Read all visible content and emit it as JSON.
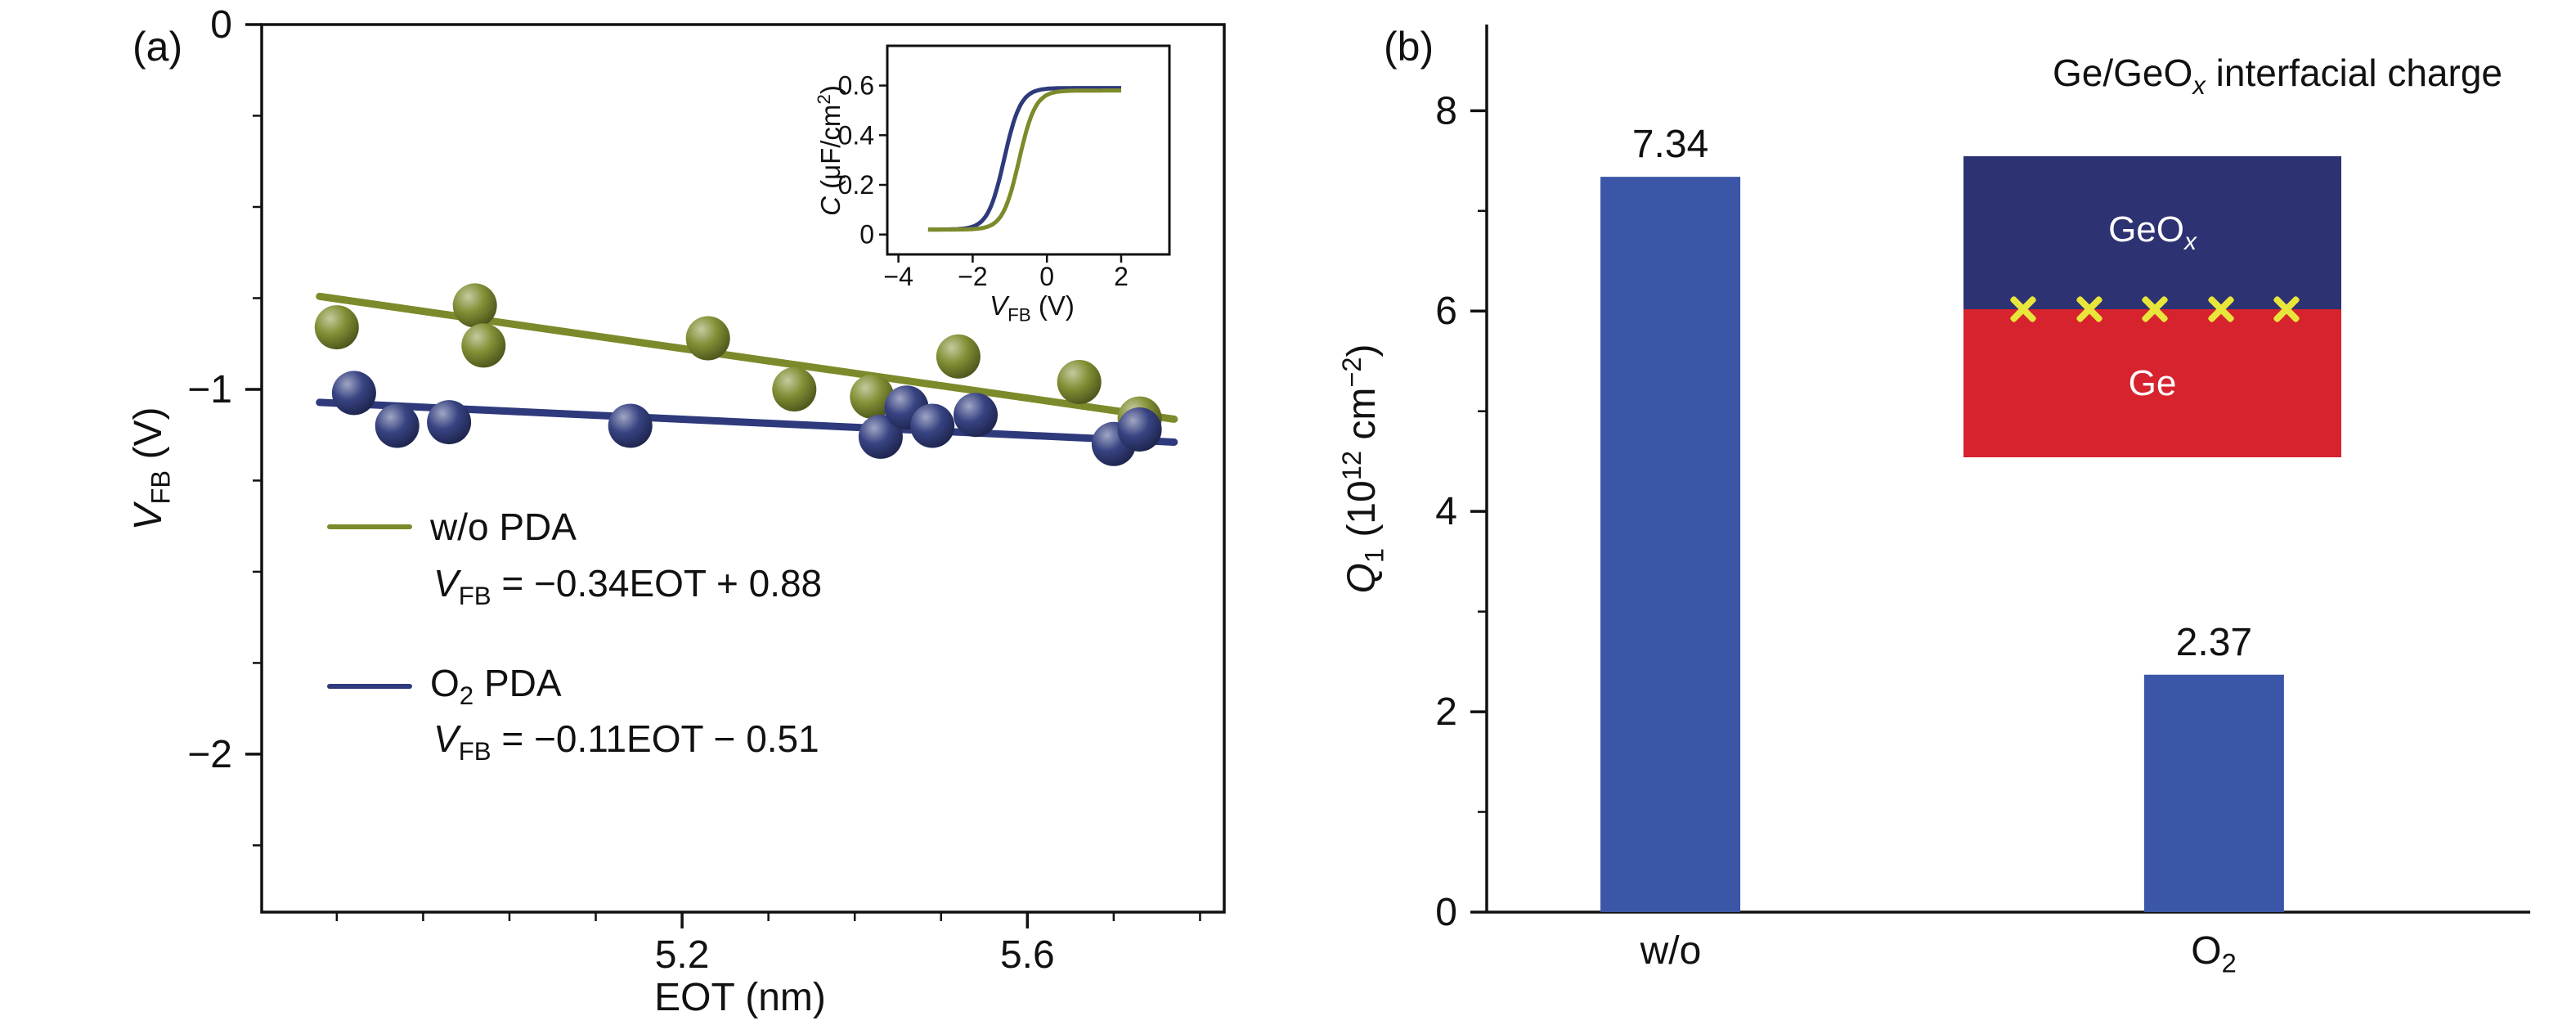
{
  "figure": {
    "background": "#ffffff"
  },
  "panel_a": {
    "label": "(a)",
    "xlabel": "EOT (nm)",
    "ylabel": [
      {
        "t": "V",
        "s": "i"
      },
      {
        "t": "FB",
        "s": "sub"
      },
      {
        "t": " (V)"
      }
    ],
    "legend": [
      {
        "label": [
          {
            "t": "w/o PDA"
          }
        ],
        "equation": [
          {
            "t": "V",
            "s": "i"
          },
          {
            "t": "FB",
            "s": "sub"
          },
          {
            "t": " = −0.34EOT + 0.88"
          }
        ],
        "color": "#7d8a2b"
      },
      {
        "label": [
          {
            "t": "O"
          },
          {
            "t": "2",
            "s": "sub"
          },
          {
            "t": " PDA"
          }
        ],
        "equation": [
          {
            "t": "V",
            "s": "i"
          },
          {
            "t": "FB",
            "s": "sub"
          },
          {
            "t": " = −0.11EOT − 0.51"
          }
        ],
        "color": "#2e3a7c"
      }
    ],
    "inset": {
      "xlabel": [
        {
          "t": "V",
          "s": "i"
        },
        {
          "t": "FB",
          "s": "sub"
        },
        {
          "t": " (V)"
        }
      ],
      "ylabel": [
        {
          "t": "C",
          "s": "i"
        },
        {
          "t": " (μF/cm"
        },
        {
          "t": "2",
          "s": "sup"
        },
        {
          "t": ")"
        }
      ]
    }
  },
  "panel_b": {
    "label": "(b)",
    "title": [
      {
        "t": "Ge/GeO"
      },
      {
        "t": "x",
        "s": "subi"
      },
      {
        "t": " interfacial charge"
      }
    ],
    "ylabel": [
      {
        "t": "Q",
        "s": "i"
      },
      {
        "t": "1",
        "s": "sub"
      },
      {
        "t": " (10"
      },
      {
        "t": "12",
        "s": "sup"
      },
      {
        "t": " cm"
      },
      {
        "t": "−2",
        "s": "sup"
      },
      {
        "t": ")"
      }
    ],
    "categories": [
      [
        {
          "t": "w/o"
        }
      ],
      [
        {
          "t": "O"
        },
        {
          "t": "2",
          "s": "sub"
        }
      ]
    ],
    "inset": {
      "top_label": [
        {
          "t": "GeO"
        },
        {
          "t": "x",
          "s": "subi"
        }
      ],
      "bottom_label": [
        {
          "t": "Ge"
        }
      ],
      "top_color": "#2d3273",
      "bottom_color": "#d6232e",
      "x_mark_color": "#e9e63b",
      "x_marks": 5
    }
  },
  "chart_data": [
    {
      "id": "panel_a_main",
      "type": "scatter",
      "title": "",
      "xlabel": "EOT (nm)",
      "ylabel": "V_FB (V)",
      "xlim": [
        4.713,
        5.828
      ],
      "ylim": [
        -2.433,
        0
      ],
      "xticks": [
        5.2,
        5.6
      ],
      "yticks": [
        0,
        -1,
        -2
      ],
      "xminor_step": 0.1,
      "yminor_step": 0.25,
      "grid": false,
      "legend_position": "inside-left",
      "series": [
        {
          "name": "w/o PDA",
          "color": "#7d8a2b",
          "points": [
            [
              4.8,
              -0.83
            ],
            [
              4.96,
              -0.77
            ],
            [
              4.97,
              -0.88
            ],
            [
              5.23,
              -0.86
            ],
            [
              5.33,
              -1.0
            ],
            [
              5.42,
              -1.02
            ],
            [
              5.52,
              -0.91
            ],
            [
              5.66,
              -0.98
            ],
            [
              5.73,
              -1.08
            ]
          ],
          "fit": {
            "slope": -0.34,
            "intercept": 0.88,
            "label": "V_FB = −0.34EOT + 0.88",
            "x_range": [
              4.78,
              5.77
            ]
          }
        },
        {
          "name": "O2 PDA",
          "color": "#2e3a7c",
          "points": [
            [
              4.82,
              -1.01
            ],
            [
              4.87,
              -1.1
            ],
            [
              4.93,
              -1.09
            ],
            [
              5.14,
              -1.1
            ],
            [
              5.43,
              -1.13
            ],
            [
              5.46,
              -1.05
            ],
            [
              5.49,
              -1.1
            ],
            [
              5.54,
              -1.07
            ],
            [
              5.7,
              -1.15
            ],
            [
              5.73,
              -1.11
            ]
          ],
          "fit": {
            "slope": -0.11,
            "intercept": -0.51,
            "label": "V_FB = −0.11EOT − 0.51",
            "x_range": [
              4.78,
              5.77
            ]
          }
        }
      ]
    },
    {
      "id": "panel_a_inset",
      "type": "line",
      "title": "",
      "xlabel": "V_FB (V)",
      "ylabel": "C (μF/cm2)",
      "xlim": [
        -4.3,
        3.3
      ],
      "ylim": [
        -0.08,
        0.76
      ],
      "xticks": [
        -4,
        -2,
        0,
        2
      ],
      "yticks": [
        0,
        0.2,
        0.4,
        0.6
      ],
      "grid": false,
      "series": [
        {
          "name": "O2 PDA",
          "color": "#2e3a7c",
          "sigmoid": {
            "vmid": -1.15,
            "width": 0.22,
            "cmin": 0.02,
            "cmax": 0.59
          },
          "x_range": [
            -3.2,
            2.0
          ]
        },
        {
          "name": "w/o PDA",
          "color": "#7d8a2b",
          "sigmoid": {
            "vmid": -0.75,
            "width": 0.22,
            "cmin": 0.02,
            "cmax": 0.58
          },
          "x_range": [
            -3.2,
            2.0
          ]
        }
      ]
    },
    {
      "id": "panel_b",
      "type": "bar",
      "title": "Ge/GeOx interfacial charge",
      "xlabel": "",
      "ylabel": "Q1 (10^12 cm^-2)",
      "categories": [
        "w/o",
        "O2"
      ],
      "values": [
        7.34,
        2.37
      ],
      "value_labels": [
        "7.34",
        "2.37"
      ],
      "bar_color": "#3b56a7",
      "ylim": [
        0,
        8.86
      ],
      "yticks": [
        0,
        2,
        4,
        6,
        8
      ],
      "yminor_step": 1,
      "grid": false
    }
  ]
}
